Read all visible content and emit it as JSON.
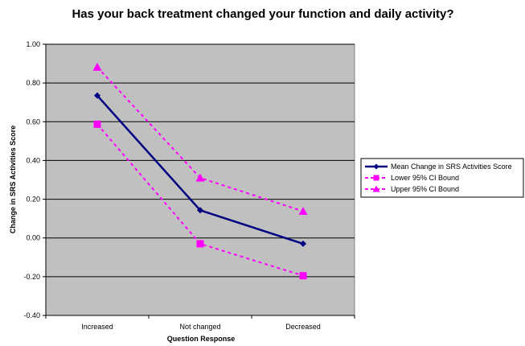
{
  "chart_data": {
    "type": "line",
    "title": "Has your back treatment changed your function and daily activity?",
    "xlabel": "Question Response",
    "ylabel": "Change in SRS Activities Score",
    "categories": [
      "Increased",
      "Not changed",
      "Decreased"
    ],
    "ylim": [
      -0.4,
      1.0
    ],
    "yticks": [
      -0.4,
      -0.2,
      0.0,
      0.2,
      0.4,
      0.6,
      0.8,
      1.0
    ],
    "ytick_labels": [
      "-0.40",
      "-0.20",
      "0.00",
      "0.20",
      "0.40",
      "0.60",
      "0.80",
      "1.00"
    ],
    "grid": true,
    "plot_background": "#c0c0c0",
    "legend_position": "right",
    "series": [
      {
        "name": "Mean Change in SRS Activities Score",
        "values": [
          0.735,
          0.143,
          -0.03
        ],
        "color": "#000080",
        "line_style": "solid",
        "marker": "diamond"
      },
      {
        "name": "Lower 95% CI Bound",
        "values": [
          0.587,
          -0.03,
          -0.195
        ],
        "color": "#ff00ff",
        "line_style": "dashed",
        "marker": "square"
      },
      {
        "name": "Upper 95% CI Bound",
        "values": [
          0.882,
          0.31,
          0.138
        ],
        "color": "#ff00ff",
        "line_style": "dashed",
        "marker": "triangle"
      }
    ]
  }
}
